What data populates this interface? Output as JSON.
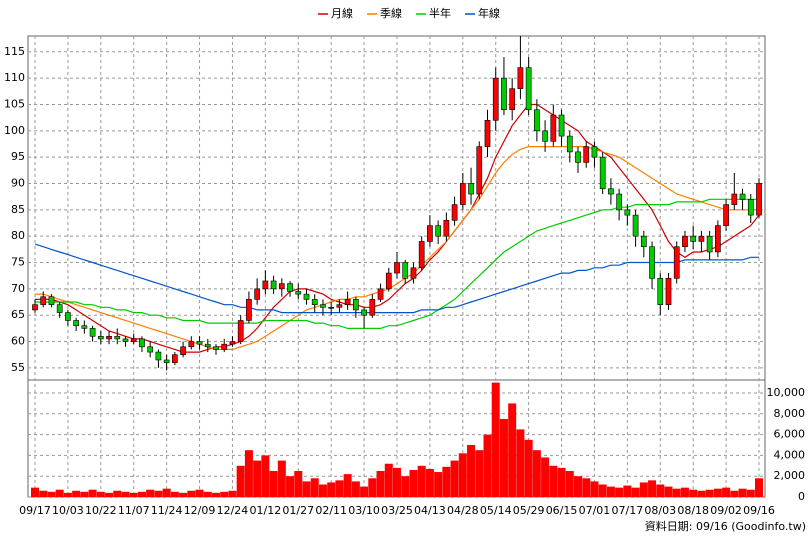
{
  "chart_data": {
    "type": "candlestick",
    "categories": [
      "09/17",
      null,
      null,
      null,
      "10/03",
      null,
      null,
      null,
      "10/22",
      null,
      null,
      null,
      "11/07",
      null,
      null,
      null,
      "11/24",
      null,
      null,
      null,
      "12/09",
      null,
      null,
      null,
      "12/24",
      null,
      null,
      null,
      "01/12",
      null,
      null,
      null,
      "01/27",
      null,
      null,
      null,
      "02/11",
      null,
      null,
      null,
      "03/10",
      null,
      null,
      null,
      "03/25",
      null,
      null,
      null,
      "04/13",
      null,
      null,
      null,
      "04/28",
      null,
      null,
      null,
      "05/14",
      null,
      null,
      null,
      "05/29",
      null,
      null,
      null,
      "06/15",
      null,
      null,
      null,
      "07/01",
      null,
      null,
      null,
      "07/17",
      null,
      null,
      null,
      "08/03",
      null,
      null,
      null,
      "08/18",
      null,
      null,
      null,
      "09/02",
      null,
      null,
      null,
      "09/16"
    ],
    "open": [
      66,
      67,
      68.5,
      67,
      65.5,
      64,
      63,
      62.5,
      61,
      60.5,
      61,
      60.5,
      60,
      60.5,
      59,
      58,
      56.5,
      56,
      57.5,
      59,
      60,
      59.5,
      59,
      58.5,
      59.5,
      60,
      64,
      68,
      70,
      71.5,
      70,
      71,
      69.5,
      69,
      68,
      67,
      66.5,
      66.5,
      67,
      68,
      66,
      65,
      68,
      70,
      73,
      75,
      72,
      74,
      79,
      82,
      80,
      83,
      86,
      90,
      88,
      97,
      102,
      110,
      104,
      108,
      112,
      104,
      100,
      98,
      103,
      99,
      96,
      94,
      97,
      95,
      89,
      88,
      85,
      84,
      80,
      78,
      72,
      67,
      72,
      78,
      80,
      79,
      80,
      77,
      82,
      86,
      88,
      87,
      84
    ],
    "high": [
      68,
      69.5,
      69,
      67.5,
      66,
      64.5,
      64,
      63,
      62,
      62,
      62.5,
      61,
      61.5,
      61,
      60,
      58.5,
      57.5,
      58,
      60,
      61,
      61,
      60.5,
      59.5,
      60.5,
      61,
      65,
      69.5,
      72,
      73.5,
      72.5,
      72,
      71.5,
      71,
      70,
      69,
      68,
      67.5,
      68,
      69.5,
      68.5,
      66.5,
      69,
      71,
      74,
      77,
      75.5,
      75,
      80,
      84,
      83,
      84.5,
      87.5,
      92,
      93,
      98,
      104,
      112,
      114,
      110,
      118,
      114,
      106,
      102,
      105,
      104,
      100,
      97,
      98,
      98,
      96,
      91,
      89,
      86,
      85,
      81,
      79,
      73,
      73,
      79,
      81,
      82,
      81,
      81,
      83,
      87,
      92,
      89,
      88,
      91
    ],
    "low": [
      65.5,
      66.5,
      66.5,
      64.5,
      63,
      62,
      61.5,
      60,
      59.5,
      59.5,
      59.5,
      59,
      59.5,
      58,
      57,
      55,
      54.5,
      55.5,
      57,
      58.5,
      58.5,
      58,
      57.5,
      58,
      59,
      59.5,
      63.5,
      67,
      69,
      69,
      68.5,
      68.5,
      68,
      67,
      65.5,
      65,
      65,
      65.5,
      66,
      64.5,
      62.5,
      64.5,
      67.5,
      69.5,
      72,
      71,
      71,
      73.5,
      78,
      78.5,
      79,
      82,
      85,
      86,
      87,
      95,
      100,
      103,
      102,
      106,
      103,
      98,
      96,
      97,
      97,
      94,
      92,
      93,
      93,
      88,
      86,
      83,
      82,
      78,
      76,
      70,
      65,
      66,
      71,
      77,
      77.5,
      77,
      75.5,
      76,
      81,
      85,
      85,
      82.5,
      83.5
    ],
    "close": [
      67,
      68.5,
      67,
      65.5,
      64,
      63,
      62.5,
      61,
      60.5,
      61,
      60.5,
      60,
      60.5,
      59,
      58,
      56.5,
      56,
      57.5,
      59,
      60,
      59.5,
      59,
      58.5,
      59.5,
      60,
      64,
      68,
      70,
      71.5,
      70,
      71,
      69.5,
      69,
      68,
      67,
      66.5,
      66.5,
      67,
      68,
      66,
      65,
      68,
      70,
      73,
      75,
      72,
      74,
      79,
      82,
      80,
      83,
      86,
      90,
      88,
      97,
      102,
      110,
      104,
      108,
      112,
      104,
      100,
      98,
      103,
      99,
      96,
      94,
      97,
      95,
      89,
      88,
      85,
      84,
      80,
      78,
      72,
      67,
      72,
      78,
      80,
      79,
      80,
      77,
      82,
      86,
      88,
      87,
      84,
      90
    ],
    "up_color": "#ff0000",
    "down_color": "#00cc00",
    "series": [
      {
        "name": "月線",
        "color": "#cc0000",
        "values": [
          68,
          68,
          68,
          67.5,
          67,
          66,
          65,
          64,
          63,
          62,
          61.5,
          61,
          60.5,
          60.5,
          60,
          59.5,
          59,
          58.5,
          58,
          58,
          58,
          58.5,
          59,
          59,
          59.5,
          60,
          61,
          62.5,
          64.5,
          66.5,
          68,
          69.5,
          70,
          70,
          69.5,
          69,
          68,
          67.5,
          67,
          67,
          66.5,
          66.5,
          67,
          68,
          69.5,
          71,
          72,
          73.5,
          75.5,
          77,
          79,
          81,
          83,
          85,
          88,
          91,
          95,
          98,
          101,
          103,
          105,
          105,
          104,
          103,
          102,
          101,
          100,
          98,
          97,
          96,
          95,
          93,
          91,
          89,
          87,
          85,
          82,
          79,
          77,
          76,
          77,
          77,
          77.5,
          78,
          79,
          80,
          81,
          82,
          84
        ]
      },
      {
        "name": "季線",
        "color": "#ff7f00",
        "values": [
          69,
          69,
          68.5,
          68,
          67.5,
          67,
          66.5,
          66,
          65.5,
          65,
          64.5,
          64,
          63.5,
          63,
          62.5,
          62,
          61.5,
          61,
          60.5,
          60,
          59.5,
          59,
          58.5,
          58.5,
          58.5,
          59,
          59.5,
          60,
          61,
          62,
          63,
          64,
          65,
          66,
          66.5,
          67,
          67.5,
          68,
          68,
          68.5,
          68.5,
          69,
          69.5,
          70,
          71,
          72,
          73,
          74.5,
          76,
          77.5,
          79,
          81,
          83,
          85,
          87,
          89.5,
          92,
          94,
          95.5,
          96.5,
          97,
          97,
          97,
          97,
          97,
          97,
          97,
          97,
          96.5,
          96,
          95.5,
          95,
          94,
          93,
          92,
          91,
          90,
          89,
          88,
          87.5,
          87,
          86.5,
          86,
          85.5,
          85,
          85,
          85,
          85,
          85
        ]
      },
      {
        "name": "半年",
        "color": "#00cc00",
        "values": [
          67.5,
          67.5,
          67.5,
          67.5,
          67.5,
          67.5,
          67,
          67,
          66.5,
          66.5,
          66,
          66,
          65.5,
          65.5,
          65,
          65,
          64.5,
          64.5,
          64,
          64,
          64,
          63.5,
          63.5,
          63.5,
          63.5,
          63.5,
          63.5,
          63.5,
          64,
          64,
          64,
          64,
          64,
          64,
          63.5,
          63.5,
          63,
          63,
          62.5,
          62.5,
          62.5,
          62.5,
          62.5,
          63,
          63,
          63.5,
          64,
          64.5,
          65,
          66,
          67,
          68,
          69.5,
          71,
          72.5,
          74,
          75.5,
          77,
          78,
          79,
          80,
          81,
          81.5,
          82,
          82.5,
          83,
          83.5,
          84,
          84.5,
          85,
          85,
          85.5,
          85.5,
          86,
          86,
          86,
          86,
          86,
          86.5,
          86.5,
          86.5,
          86.5,
          87,
          87,
          87,
          87,
          87,
          87,
          87
        ]
      },
      {
        "name": "年線",
        "color": "#0055cc",
        "values": [
          78.5,
          78,
          77.5,
          77,
          76.5,
          76,
          75.5,
          75,
          74.5,
          74,
          73.5,
          73,
          72.5,
          72,
          71.5,
          71,
          70.5,
          70,
          69.5,
          69,
          68.5,
          68,
          67.5,
          67,
          67,
          66.5,
          66.5,
          66,
          66,
          66,
          65.5,
          65.5,
          65.5,
          65.5,
          65.5,
          65.5,
          65.5,
          65.5,
          65.5,
          65.5,
          65.5,
          65.5,
          65.5,
          65.5,
          65.5,
          65.5,
          65.5,
          66,
          66,
          66,
          66.5,
          66.5,
          67,
          67.5,
          68,
          68.5,
          69,
          69.5,
          70,
          70.5,
          71,
          71.5,
          72,
          72.5,
          73,
          73,
          73.5,
          73.5,
          74,
          74,
          74.5,
          74.5,
          75,
          75,
          75,
          75,
          75,
          75,
          75,
          75.5,
          75.5,
          75.5,
          75.5,
          75.5,
          75.5,
          75.5,
          75.5,
          76,
          76
        ]
      }
    ],
    "ylim": [
      52.7,
      118
    ],
    "yticks": [
      55,
      60,
      65,
      70,
      75,
      80,
      85,
      90,
      95,
      100,
      105,
      110,
      115
    ],
    "volume": {
      "color": "#ff0000",
      "values": [
        900,
        600,
        500,
        700,
        400,
        600,
        500,
        700,
        500,
        400,
        600,
        500,
        400,
        500,
        700,
        600,
        800,
        500,
        400,
        600,
        700,
        500,
        400,
        500,
        600,
        3000,
        4500,
        3500,
        4000,
        2500,
        3500,
        2000,
        2500,
        1500,
        1800,
        1200,
        1400,
        1600,
        2200,
        1500,
        1000,
        1800,
        2500,
        3200,
        2800,
        2000,
        2600,
        3000,
        2700,
        2400,
        2900,
        3500,
        4200,
        5000,
        4500,
        6000,
        11000,
        7500,
        9000,
        6500,
        5500,
        4500,
        3800,
        3000,
        2800,
        2500,
        2000,
        1800,
        1500,
        1200,
        1000,
        900,
        1100,
        900,
        1400,
        1600,
        1200,
        1000,
        800,
        900,
        700,
        600,
        700,
        800,
        900,
        600,
        800,
        700,
        1800
      ],
      "ylim": [
        0,
        11250
      ],
      "yticks": [
        0,
        {
          "value": 2000,
          "label": "2,000"
        },
        {
          "value": 4000,
          "label": "4,000"
        },
        {
          "value": 6000,
          "label": "6,000"
        },
        {
          "value": 8000,
          "label": "8,000"
        },
        {
          "value": 10000,
          "label": "10,000"
        }
      ]
    },
    "grid": true,
    "footer": "資料日期: 09/16  (Goodinfo.tw)"
  }
}
